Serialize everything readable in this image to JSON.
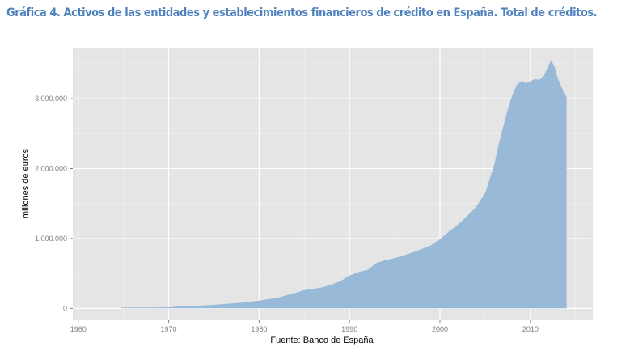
{
  "title": "Gráfica 4. Activos de las entidades y establecimientos financieros de crédito en España. Total de créditos.",
  "chart_data": {
    "type": "area",
    "title": "Gráfica 4. Activos de las entidades y establecimientos financieros de crédito en España. Total de créditos.",
    "xlabel": "Fuente: Banco de España",
    "ylabel": "millones de euros",
    "xlim": [
      1959.4,
      2016.9
    ],
    "ylim": [
      -170000,
      3730000
    ],
    "x_ticks": [
      1960,
      1970,
      1980,
      1990,
      2000,
      2010
    ],
    "x_tick_labels": [
      "1960",
      "1970",
      "1980",
      "1990",
      "2000",
      "2010"
    ],
    "y_ticks": [
      0,
      1000000,
      2000000,
      3000000
    ],
    "y_tick_labels": [
      "0",
      "1.000.000",
      "2.000.000",
      "3.000.000"
    ],
    "grid": true,
    "fill_color": "#98b9d8",
    "panel_color": "#e5e5e5",
    "x": [
      1964.7,
      1968,
      1970,
      1971,
      1973,
      1975,
      1978,
      1980,
      1982,
      1984,
      1985,
      1987,
      1988,
      1989,
      1990,
      1991,
      1992,
      1993,
      1994,
      1995,
      1996,
      1997,
      1998,
      1999,
      2000,
      2001,
      2002,
      2003,
      2004,
      2005,
      2005.5,
      2006,
      2006.5,
      2007,
      2007.5,
      2008,
      2008.5,
      2009,
      2009.5,
      2010,
      2010.5,
      2011,
      2011.5,
      2012,
      2012.3,
      2012.7,
      2013,
      2013.5,
      2014
    ],
    "values": [
      10000,
      12000,
      15000,
      25000,
      35000,
      50000,
      80000,
      110000,
      150000,
      220000,
      260000,
      300000,
      340000,
      390000,
      470000,
      520000,
      550000,
      650000,
      690000,
      720000,
      760000,
      800000,
      850000,
      900000,
      990000,
      1100000,
      1200000,
      1320000,
      1450000,
      1650000,
      1850000,
      2050000,
      2350000,
      2600000,
      2850000,
      3050000,
      3200000,
      3250000,
      3220000,
      3250000,
      3280000,
      3270000,
      3330000,
      3480000,
      3550000,
      3450000,
      3300000,
      3150000,
      3020000
    ]
  }
}
